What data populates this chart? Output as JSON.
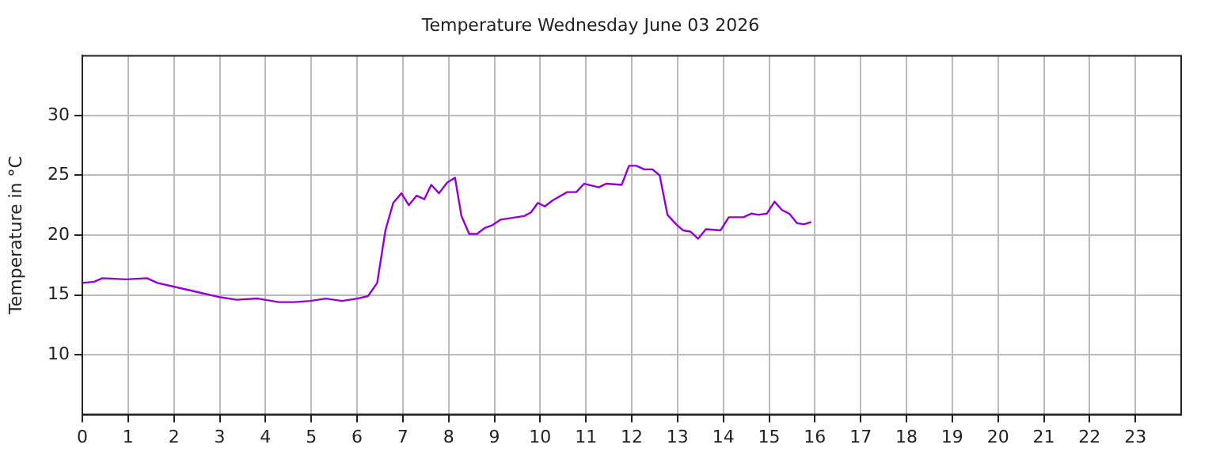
{
  "chart_data": {
    "type": "line",
    "title": "Temperature Wednesday June 03 2026",
    "ylabel": "Temperature in °C",
    "xlim": [
      0,
      24
    ],
    "xticks": [
      0,
      1,
      2,
      3,
      4,
      5,
      6,
      7,
      8,
      9,
      10,
      11,
      12,
      13,
      14,
      15,
      16,
      17,
      18,
      19,
      20,
      21,
      22,
      23
    ],
    "ylim": [
      5,
      35
    ],
    "yticks": [
      10,
      15,
      20,
      25,
      30
    ],
    "grid": true,
    "legend": false,
    "marker": "none",
    "line_style": "solid",
    "series": [
      {
        "color": "#9400d3",
        "x": [
          0,
          0.26,
          0.44,
          0.95,
          1.41,
          1.64,
          1.99,
          2.56,
          3.02,
          3.37,
          3.83,
          4.29,
          4.63,
          4.98,
          5.32,
          5.67,
          6.01,
          6.24,
          6.44,
          6.62,
          6.79,
          6.97,
          7.13,
          7.3,
          7.47,
          7.62,
          7.79,
          7.97,
          8.14,
          8.28,
          8.45,
          8.62,
          8.79,
          8.94,
          9.14,
          9.48,
          9.65,
          9.8,
          9.95,
          10.1,
          10.27,
          10.59,
          10.79,
          10.96,
          11.28,
          11.44,
          11.78,
          11.94,
          12.1,
          12.27,
          12.45,
          12.61,
          12.78,
          12.97,
          13.12,
          13.28,
          13.45,
          13.62,
          13.94,
          14.12,
          14.44,
          14.61,
          14.77,
          14.95,
          15.12,
          15.28,
          15.44,
          15.61,
          15.76,
          15.92
        ],
        "values": [
          16.0,
          16.1,
          16.4,
          16.3,
          16.4,
          16.0,
          15.7,
          15.2,
          14.8,
          14.6,
          14.7,
          14.4,
          14.4,
          14.5,
          14.7,
          14.5,
          14.7,
          14.9,
          16.0,
          20.4,
          22.7,
          23.5,
          22.5,
          23.3,
          23.0,
          24.2,
          23.5,
          24.4,
          24.8,
          21.6,
          20.1,
          20.1,
          20.6,
          20.8,
          21.3,
          21.5,
          21.6,
          21.9,
          22.7,
          22.4,
          22.9,
          23.6,
          23.6,
          24.3,
          24.0,
          24.3,
          24.2,
          25.8,
          25.8,
          25.5,
          25.5,
          25.0,
          21.7,
          20.9,
          20.4,
          20.3,
          19.7,
          20.5,
          20.4,
          21.5,
          21.5,
          21.8,
          21.7,
          21.8,
          22.8,
          22.1,
          21.8,
          21.0,
          20.9,
          21.1
        ]
      }
    ]
  }
}
